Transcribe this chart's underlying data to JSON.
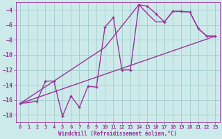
{
  "xlabel": "Windchill (Refroidissement éolien,°C)",
  "bg_color": "#cdeaea",
  "grid_color": "#a8d0d0",
  "line_color": "#993399",
  "xlim": [
    -0.5,
    23.5
  ],
  "ylim": [
    -19,
    -3
  ],
  "xticks": [
    0,
    1,
    2,
    3,
    4,
    5,
    6,
    7,
    8,
    9,
    10,
    11,
    12,
    13,
    14,
    15,
    16,
    17,
    18,
    19,
    20,
    21,
    22,
    23
  ],
  "yticks": [
    -18,
    -16,
    -14,
    -12,
    -10,
    -8,
    -6,
    -4
  ],
  "series1_x": [
    0,
    2,
    3,
    4,
    5,
    6,
    7,
    8,
    9,
    10,
    11,
    12,
    13,
    14,
    15,
    16,
    17,
    18,
    19,
    20,
    21,
    22,
    23
  ],
  "series1_y": [
    -16.5,
    -16.2,
    -13.5,
    -13.5,
    -18.2,
    -15.5,
    -17.0,
    -14.2,
    -14.3,
    -6.3,
    -5.0,
    -12.0,
    -12.0,
    -3.3,
    -3.5,
    -4.5,
    -5.6,
    -4.2,
    -4.2,
    -4.3,
    -6.5,
    -7.5,
    -7.5
  ],
  "series2_x": [
    0,
    23
  ],
  "series2_y": [
    -16.5,
    -7.5
  ],
  "series3_x": [
    0,
    10,
    14,
    15,
    16,
    17,
    18,
    19,
    20,
    21,
    22,
    23
  ],
  "series3_y": [
    -16.5,
    -9.0,
    -3.3,
    -4.5,
    -5.6,
    -5.6,
    -4.2,
    -4.2,
    -4.3,
    -6.5,
    -7.5,
    -7.5
  ]
}
